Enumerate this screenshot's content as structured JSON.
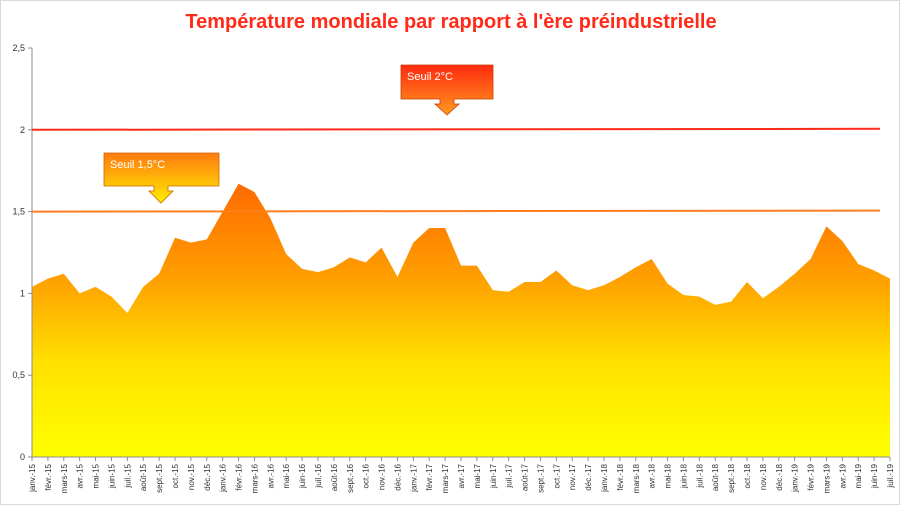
{
  "chart_data": {
    "type": "area",
    "title": "Température mondiale par rapport à l'ère préindustrielle",
    "xlabel": "",
    "ylabel": "",
    "ylim": [
      0,
      2.5
    ],
    "yticks": [
      "0",
      "0,5",
      "1",
      "1,5",
      "2",
      "2,5"
    ],
    "categories": [
      "janv.-15",
      "févr.-15",
      "mars-15",
      "avr.-15",
      "mai-15",
      "juin-15",
      "juil.-15",
      "août-15",
      "sept.-15",
      "oct.-15",
      "nov.-15",
      "déc.-15",
      "janv.-16",
      "févr.-16",
      "mars-16",
      "avr.-16",
      "mai-16",
      "juin-16",
      "juil.-16",
      "août-16",
      "sept.-16",
      "oct.-16",
      "nov.-16",
      "déc.-16",
      "janv.-17",
      "févr.-17",
      "mars-17",
      "avr.-17",
      "mai-17",
      "juin-17",
      "juil.-17",
      "août-17",
      "sept.-17",
      "oct.-17",
      "nov.-17",
      "déc.-17",
      "janv.-18",
      "févr.-18",
      "mars-18",
      "avr.-18",
      "mai-18",
      "juin-18",
      "juil.-18",
      "août-18",
      "sept.-18",
      "oct.-18",
      "nov.-18",
      "déc.-18",
      "janv.-19",
      "févr.-19",
      "mars-19",
      "avr.-19",
      "mai-19",
      "juin-19",
      "juil.-19"
    ],
    "values": [
      1.04,
      1.09,
      1.12,
      1.0,
      1.04,
      0.98,
      0.88,
      1.04,
      1.12,
      1.34,
      1.31,
      1.33,
      1.5,
      1.67,
      1.62,
      1.46,
      1.24,
      1.15,
      1.13,
      1.16,
      1.22,
      1.19,
      1.28,
      1.1,
      1.31,
      1.4,
      1.4,
      1.17,
      1.17,
      1.02,
      1.01,
      1.07,
      1.07,
      1.14,
      1.05,
      1.02,
      1.05,
      1.1,
      1.16,
      1.21,
      1.06,
      0.99,
      0.98,
      0.93,
      0.95,
      1.07,
      0.97,
      1.04,
      1.12,
      1.21,
      1.41,
      1.32,
      1.18,
      1.14,
      1.09
    ],
    "thresholds": [
      {
        "label": "Seuil 2°C",
        "value": 2.0,
        "color": "#ff2a1a"
      },
      {
        "label": "Seuil 1,5°C",
        "value": 1.5,
        "color": "#ff7f1e"
      }
    ],
    "fill_colors": {
      "top": "#ff6a00",
      "bottom": "#ffff00"
    },
    "grid": false,
    "legend": "none"
  }
}
